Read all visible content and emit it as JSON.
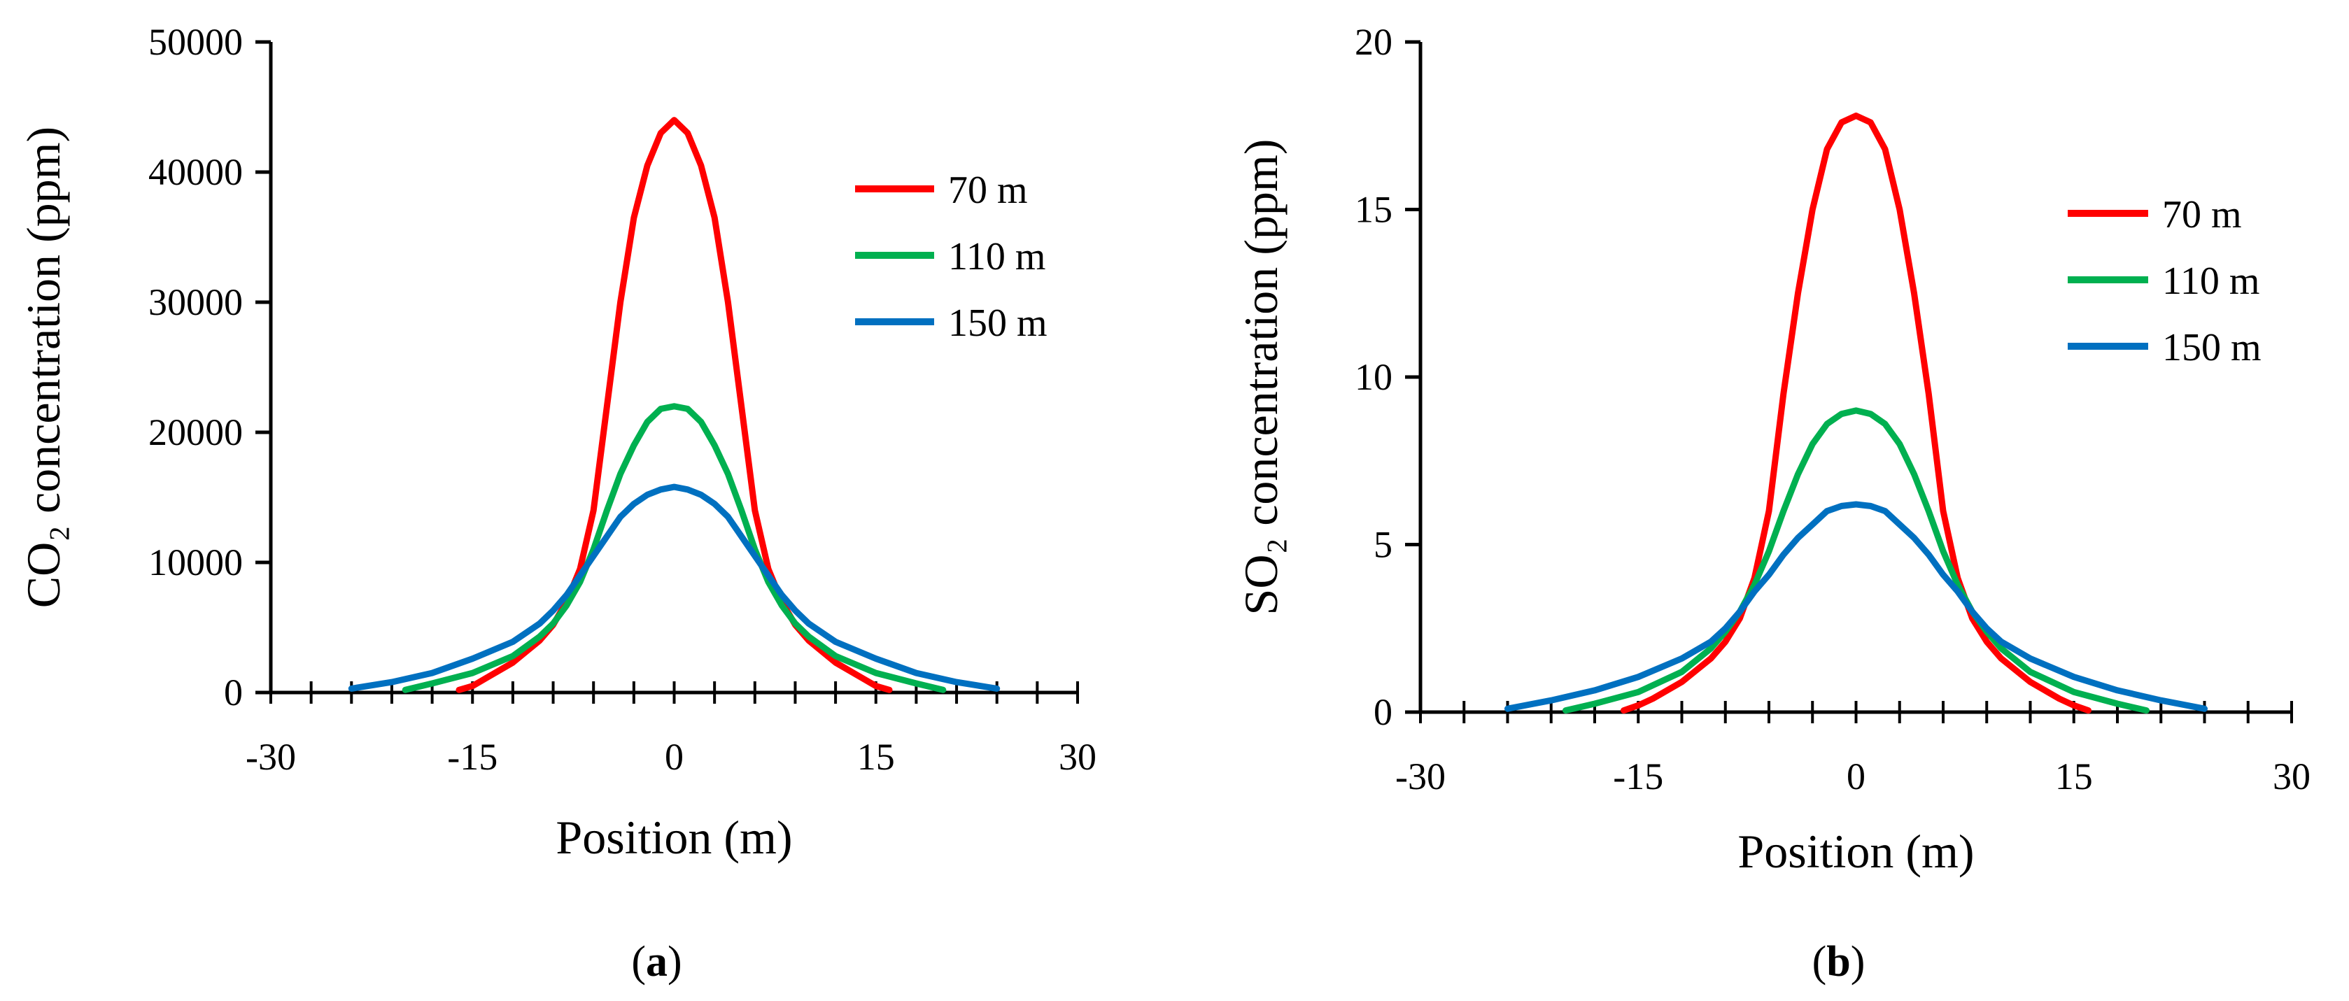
{
  "chart_data": [
    {
      "type": "line",
      "panel_label": "a",
      "xlabel": "Position (m)",
      "ylabel": "CO₂ concentration (ppm)",
      "xlim": [
        -30,
        30
      ],
      "ylim": [
        0,
        50000
      ],
      "xticks": [
        -30,
        -15,
        0,
        15,
        30
      ],
      "yticks": [
        0,
        10000,
        20000,
        30000,
        40000,
        50000
      ],
      "x_minor_step": 3,
      "legend_position": "upper-right",
      "series": [
        {
          "name": "70 m",
          "color": "#ff0000",
          "x": [
            -16,
            -15,
            -14,
            -12,
            -10,
            -9,
            -8,
            -7,
            -6,
            -5,
            -4,
            -3,
            -2,
            -1,
            0,
            1,
            2,
            3,
            4,
            5,
            6,
            7,
            8,
            9,
            10,
            12,
            14,
            15,
            16
          ],
          "y": [
            200,
            500,
            1100,
            2300,
            4000,
            5200,
            7000,
            9500,
            14000,
            22000,
            30000,
            36500,
            40500,
            43000,
            44000,
            43000,
            40500,
            36500,
            30000,
            22000,
            14000,
            9500,
            7000,
            5200,
            4000,
            2300,
            1100,
            500,
            200
          ]
        },
        {
          "name": "110 m",
          "color": "#00b050",
          "x": [
            -20,
            -18,
            -15,
            -12,
            -10,
            -9,
            -8,
            -7,
            -6,
            -5,
            -4,
            -3,
            -2,
            -1,
            0,
            1,
            2,
            3,
            4,
            5,
            6,
            7,
            8,
            9,
            10,
            12,
            15,
            18,
            20
          ],
          "y": [
            200,
            700,
            1500,
            2800,
            4300,
            5300,
            6700,
            8500,
            11000,
            14000,
            16800,
            19000,
            20800,
            21800,
            22000,
            21800,
            20800,
            19000,
            16800,
            14000,
            11000,
            8500,
            6700,
            5300,
            4300,
            2800,
            1500,
            700,
            200
          ]
        },
        {
          "name": "150 m",
          "color": "#0070c0",
          "x": [
            -24,
            -21,
            -18,
            -15,
            -12,
            -10,
            -9,
            -8,
            -7,
            -6,
            -5,
            -4,
            -3,
            -2,
            -1,
            0,
            1,
            2,
            3,
            4,
            5,
            6,
            7,
            8,
            9,
            10,
            12,
            15,
            18,
            21,
            24
          ],
          "y": [
            300,
            800,
            1500,
            2600,
            3900,
            5300,
            6300,
            7500,
            9000,
            10500,
            12000,
            13500,
            14500,
            15200,
            15600,
            15800,
            15600,
            15200,
            14500,
            13500,
            12000,
            10500,
            9000,
            7500,
            6300,
            5300,
            3900,
            2600,
            1500,
            800,
            300
          ]
        }
      ]
    },
    {
      "type": "line",
      "panel_label": "b",
      "xlabel": "Position (m)",
      "ylabel": "SO₂ concentration (ppm)",
      "xlim": [
        -30,
        30
      ],
      "ylim": [
        0,
        20
      ],
      "xticks": [
        -30,
        -15,
        0,
        15,
        30
      ],
      "yticks": [
        0,
        5,
        10,
        15,
        20
      ],
      "x_minor_step": 3,
      "legend_position": "upper-right",
      "series": [
        {
          "name": "70 m",
          "color": "#ff0000",
          "x": [
            -16,
            -15,
            -14,
            -12,
            -10,
            -9,
            -8,
            -7,
            -6,
            -5,
            -4,
            -3,
            -2,
            -1,
            0,
            1,
            2,
            3,
            4,
            5,
            6,
            7,
            8,
            9,
            10,
            12,
            14,
            15,
            16
          ],
          "y": [
            0.05,
            0.2,
            0.4,
            0.9,
            1.6,
            2.1,
            2.8,
            4.0,
            6.0,
            9.5,
            12.5,
            15.0,
            16.8,
            17.6,
            17.8,
            17.6,
            16.8,
            15.0,
            12.5,
            9.5,
            6.0,
            4.0,
            2.8,
            2.1,
            1.6,
            0.9,
            0.4,
            0.2,
            0.05
          ]
        },
        {
          "name": "110 m",
          "color": "#00b050",
          "x": [
            -20,
            -18,
            -15,
            -12,
            -10,
            -9,
            -8,
            -7,
            -6,
            -5,
            -4,
            -3,
            -2,
            -1,
            0,
            1,
            2,
            3,
            4,
            5,
            6,
            7,
            8,
            9,
            10,
            12,
            15,
            18,
            20
          ],
          "y": [
            0.05,
            0.25,
            0.6,
            1.2,
            1.9,
            2.4,
            3.0,
            3.8,
            4.8,
            6.0,
            7.1,
            8.0,
            8.6,
            8.9,
            9.0,
            8.9,
            8.6,
            8.0,
            7.1,
            6.0,
            4.8,
            3.8,
            3.0,
            2.4,
            1.9,
            1.2,
            0.6,
            0.25,
            0.05
          ]
        },
        {
          "name": "150 m",
          "color": "#0070c0",
          "x": [
            -24,
            -21,
            -18,
            -15,
            -12,
            -10,
            -9,
            -8,
            -7,
            -6,
            -5,
            -4,
            -3,
            -2,
            -1,
            0,
            1,
            2,
            3,
            4,
            5,
            6,
            7,
            8,
            9,
            10,
            12,
            15,
            18,
            21,
            24
          ],
          "y": [
            0.1,
            0.35,
            0.65,
            1.05,
            1.6,
            2.1,
            2.5,
            3.0,
            3.6,
            4.1,
            4.7,
            5.2,
            5.6,
            6.0,
            6.15,
            6.2,
            6.15,
            6.0,
            5.6,
            5.2,
            4.7,
            4.1,
            3.6,
            3.0,
            2.5,
            2.1,
            1.6,
            1.05,
            0.65,
            0.35,
            0.1
          ]
        }
      ]
    }
  ]
}
